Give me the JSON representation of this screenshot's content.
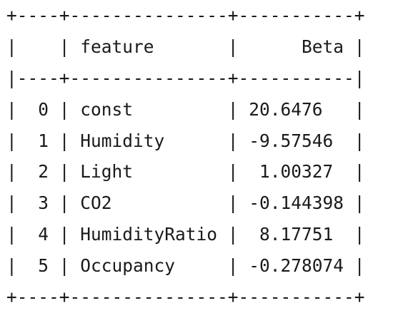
{
  "table": {
    "columns": [
      "",
      "feature",
      "Beta"
    ],
    "rows": [
      [
        "0",
        "const",
        "20.6476"
      ],
      [
        "1",
        "Humidity",
        "-9.57546"
      ],
      [
        "2",
        "Light",
        "1.00327"
      ],
      [
        "3",
        "CO2",
        "-0.144398"
      ],
      [
        "4",
        "HumidityRatio",
        "8.17751"
      ],
      [
        "5",
        "Occupancy",
        "-0.278074"
      ]
    ],
    "lines": [
      "+----+---------------+-----------+",
      "|    | feature       |      Beta |",
      "|----+---------------+-----------|",
      "|  0 | const         | 20.6476   |",
      "|  1 | Humidity      | -9.57546  |",
      "|  2 | Light         |  1.00327  |",
      "|  3 | CO2           | -0.144398 |",
      "|  4 | HumidityRatio |  8.17751  |",
      "|  5 | Occupancy     | -0.278074 |",
      "+----+---------------+-----------+"
    ]
  }
}
